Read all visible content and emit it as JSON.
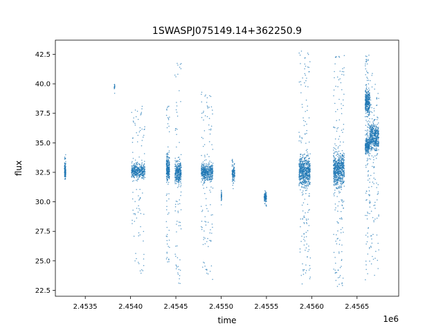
{
  "chart_data": {
    "type": "scatter",
    "title": "1SWASPJ075149.14+362250.9",
    "xlabel": "time",
    "ylabel": "flux",
    "x_offset_label": "1e6",
    "xlim": [
      2453170,
      2456960
    ],
    "ylim": [
      22.0,
      43.7
    ],
    "x_ticks": [
      2.4535,
      2.454,
      2.4545,
      2.455,
      2.4555,
      2.456,
      2.4565
    ],
    "x_tick_labels": [
      "2.4535",
      "2.4540",
      "2.4545",
      "2.4550",
      "2.4555",
      "2.4560",
      "2.4565"
    ],
    "y_ticks": [
      22.5,
      25.0,
      27.5,
      30.0,
      32.5,
      35.0,
      37.5,
      40.0,
      42.5
    ],
    "y_tick_labels": [
      "22.5",
      "25.0",
      "27.5",
      "30.0",
      "32.5",
      "35.0",
      "37.5",
      "40.0",
      "42.5"
    ],
    "grid": false,
    "point_color": "#1f77b4",
    "series": [
      {
        "clusters": [
          {
            "x_start": 2453270,
            "x_end": 2453285,
            "y_center": 32.6,
            "y_core": 0.6,
            "y_min": 31.9,
            "y_max": 34.0,
            "weight": 0.4
          },
          {
            "x_start": 2453820,
            "x_end": 2453825,
            "y_center": 39.7,
            "y_core": 0.3,
            "y_min": 39.1,
            "y_max": 40.0,
            "weight": 0.05
          },
          {
            "x_start": 2454010,
            "x_end": 2454160,
            "y_center": 32.6,
            "y_core": 0.6,
            "y_min": 23.7,
            "y_max": 38.2,
            "weight": 1.4
          },
          {
            "x_start": 2454395,
            "x_end": 2454430,
            "y_center": 32.8,
            "y_core": 1.0,
            "y_min": 24.8,
            "y_max": 38.2,
            "weight": 0.9
          },
          {
            "x_start": 2454490,
            "x_end": 2454560,
            "y_center": 32.5,
            "y_core": 1.0,
            "y_min": 23.0,
            "y_max": 42.1,
            "weight": 1.1
          },
          {
            "x_start": 2454780,
            "x_end": 2454910,
            "y_center": 32.5,
            "y_core": 0.7,
            "y_min": 23.4,
            "y_max": 39.3,
            "weight": 1.6
          },
          {
            "x_start": 2455000,
            "x_end": 2455005,
            "y_center": 30.5,
            "y_core": 0.4,
            "y_min": 29.6,
            "y_max": 31.4,
            "weight": 0.1
          },
          {
            "x_start": 2455120,
            "x_end": 2455150,
            "y_center": 32.4,
            "y_core": 0.6,
            "y_min": 31.0,
            "y_max": 33.8,
            "weight": 0.35
          },
          {
            "x_start": 2455475,
            "x_end": 2455500,
            "y_center": 30.4,
            "y_core": 0.4,
            "y_min": 29.6,
            "y_max": 31.1,
            "weight": 0.3
          },
          {
            "x_start": 2455860,
            "x_end": 2455985,
            "y_center": 32.6,
            "y_core": 1.3,
            "y_min": 23.0,
            "y_max": 42.8,
            "weight": 2.2
          },
          {
            "x_start": 2456240,
            "x_end": 2456360,
            "y_center": 32.7,
            "y_core": 1.4,
            "y_min": 22.8,
            "y_max": 42.5,
            "weight": 2.2
          },
          {
            "x_start": 2456590,
            "x_end": 2456640,
            "y_center": 38.5,
            "y_core": 1.1,
            "y_min": 33.5,
            "y_max": 42.5,
            "weight": 1.1
          },
          {
            "x_start": 2456590,
            "x_end": 2456640,
            "y_center": 34.8,
            "y_core": 0.6,
            "y_min": 23.0,
            "y_max": 36.5,
            "weight": 0.8
          },
          {
            "x_start": 2456640,
            "x_end": 2456740,
            "y_center": 35.5,
            "y_core": 1.1,
            "y_min": 23.0,
            "y_max": 41.2,
            "weight": 1.6
          }
        ]
      }
    ]
  }
}
